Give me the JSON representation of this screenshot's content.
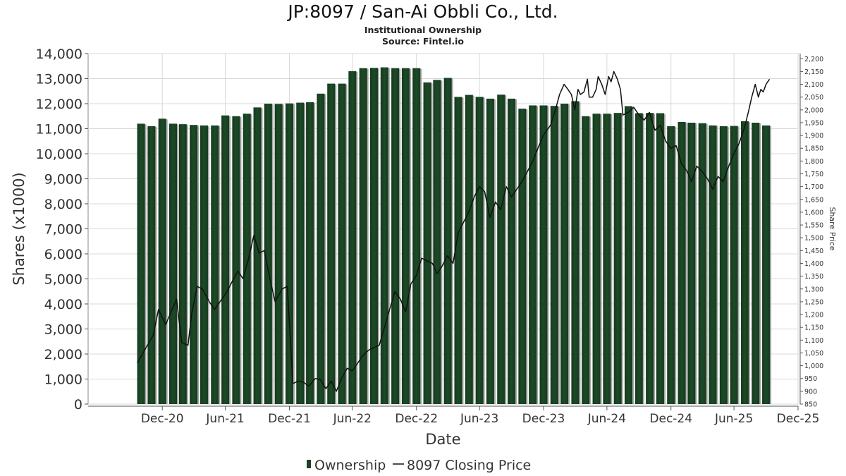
{
  "title": "JP:8097 / San-Ai Obbli Co., Ltd.",
  "subtitle": "Institutional Ownership",
  "source": "Source: Fintel.io",
  "chart_data": {
    "type": "bar",
    "title": "JP:8097 / San-Ai Obbli Co., Ltd.",
    "xlabel": "Date",
    "ylabel": "Shares (x1000)",
    "y2label": "Share Price",
    "ylim": [
      0,
      14000
    ],
    "y2lim": [
      850,
      2220
    ],
    "yticks": [
      "0",
      "1,000",
      "2,000",
      "3,000",
      "4,000",
      "5,000",
      "6,000",
      "7,000",
      "8,000",
      "9,000",
      "10,000",
      "11,000",
      "12,000",
      "13,000",
      "14,000"
    ],
    "y2ticks": [
      "850",
      "900",
      "950",
      "1,000",
      "1,050",
      "1,100",
      "1,150",
      "1,200",
      "1,250",
      "1,300",
      "1,350",
      "1,400",
      "1,450",
      "1,500",
      "1,550",
      "1,600",
      "1,650",
      "1,700",
      "1,750",
      "1,800",
      "1,850",
      "1,900",
      "1,950",
      "2,000",
      "2,050",
      "2,100",
      "2,150",
      "2,200"
    ],
    "xlim": [
      "2020-06-01",
      "2025-12-31"
    ],
    "xticks": [
      {
        "label": "Dec-20",
        "date": "2020-12-31"
      },
      {
        "label": "Jun-21",
        "date": "2021-06-30"
      },
      {
        "label": "Dec-21",
        "date": "2021-12-31"
      },
      {
        "label": "Jun-22",
        "date": "2022-06-30"
      },
      {
        "label": "Dec-22",
        "date": "2022-12-31"
      },
      {
        "label": "Jun-23",
        "date": "2023-06-30"
      },
      {
        "label": "Dec-23",
        "date": "2023-12-31"
      },
      {
        "label": "Jun-24",
        "date": "2024-06-30"
      },
      {
        "label": "Dec-24",
        "date": "2024-12-31"
      },
      {
        "label": "Jun-25",
        "date": "2025-06-30"
      },
      {
        "label": "Dec-25",
        "date": "2025-12-31"
      }
    ],
    "legend_position": "bottom",
    "grid": true,
    "series": [
      {
        "name": "Ownership",
        "type": "bar",
        "color": "#1a4223",
        "x": [
          "2020-10-31",
          "2020-11-30",
          "2020-12-31",
          "2021-01-31",
          "2021-02-28",
          "2021-03-31",
          "2021-04-30",
          "2021-05-31",
          "2021-06-30",
          "2021-07-31",
          "2021-08-31",
          "2021-09-30",
          "2021-10-31",
          "2021-11-30",
          "2021-12-31",
          "2022-01-31",
          "2022-02-28",
          "2022-03-31",
          "2022-04-30",
          "2022-05-31",
          "2022-06-30",
          "2022-07-31",
          "2022-08-31",
          "2022-09-30",
          "2022-10-31",
          "2022-11-30",
          "2022-12-31",
          "2023-01-31",
          "2023-02-28",
          "2023-03-31",
          "2023-04-30",
          "2023-05-31",
          "2023-06-30",
          "2023-07-31",
          "2023-08-31",
          "2023-09-30",
          "2023-10-31",
          "2023-11-30",
          "2023-12-31",
          "2024-01-31",
          "2024-02-29",
          "2024-03-31",
          "2024-04-30",
          "2024-05-31",
          "2024-06-30",
          "2024-07-31",
          "2024-08-31",
          "2024-09-30",
          "2024-10-31",
          "2024-11-30",
          "2024-12-31",
          "2025-01-31",
          "2025-02-28",
          "2025-03-31",
          "2025-04-30",
          "2025-05-31",
          "2025-06-30",
          "2025-07-31",
          "2025-08-31",
          "2025-09-30"
        ],
        "values": [
          11200,
          11100,
          11400,
          11200,
          11180,
          11150,
          11130,
          11130,
          11530,
          11500,
          11600,
          11850,
          12000,
          11990,
          12010,
          12040,
          12060,
          12400,
          12800,
          12800,
          13300,
          13420,
          13430,
          13450,
          13420,
          13420,
          13420,
          12850,
          12950,
          13030,
          12270,
          12350,
          12270,
          12200,
          12360,
          12200,
          11800,
          11930,
          11930,
          11910,
          12000,
          12100,
          11500,
          11600,
          11600,
          11630,
          11900,
          11620,
          11630,
          11620,
          11100,
          11270,
          11240,
          11220,
          11130,
          11100,
          11110,
          11300,
          11240,
          11130
        ]
      },
      {
        "name": "8097 Closing Price",
        "type": "line",
        "color": "#111111",
        "points": [
          [
            "2020-10-20",
            1010
          ],
          [
            "2020-11-10",
            1060
          ],
          [
            "2020-12-05",
            1120
          ],
          [
            "2020-12-20",
            1220
          ],
          [
            "2021-01-10",
            1160
          ],
          [
            "2021-01-25",
            1210
          ],
          [
            "2021-02-10",
            1260
          ],
          [
            "2021-02-25",
            1090
          ],
          [
            "2021-03-15",
            1080
          ],
          [
            "2021-03-25",
            1200
          ],
          [
            "2021-04-10",
            1310
          ],
          [
            "2021-04-25",
            1300
          ],
          [
            "2021-05-15",
            1250
          ],
          [
            "2021-05-30",
            1220
          ],
          [
            "2021-06-20",
            1260
          ],
          [
            "2021-07-05",
            1290
          ],
          [
            "2021-07-20",
            1330
          ],
          [
            "2021-08-05",
            1370
          ],
          [
            "2021-08-20",
            1340
          ],
          [
            "2021-09-05",
            1420
          ],
          [
            "2021-09-20",
            1510
          ],
          [
            "2021-10-05",
            1440
          ],
          [
            "2021-10-20",
            1450
          ],
          [
            "2021-11-05",
            1340
          ],
          [
            "2021-11-20",
            1250
          ],
          [
            "2021-12-10",
            1300
          ],
          [
            "2021-12-25",
            1310
          ],
          [
            "2022-01-10",
            930
          ],
          [
            "2022-01-25",
            940
          ],
          [
            "2022-02-10",
            935
          ],
          [
            "2022-02-25",
            920
          ],
          [
            "2022-03-15",
            950
          ],
          [
            "2022-03-30",
            945
          ],
          [
            "2022-04-15",
            910
          ],
          [
            "2022-04-30",
            940
          ],
          [
            "2022-05-15",
            900
          ],
          [
            "2022-05-30",
            950
          ],
          [
            "2022-06-15",
            990
          ],
          [
            "2022-06-30",
            980
          ],
          [
            "2022-07-15",
            1010
          ],
          [
            "2022-07-30",
            1040
          ],
          [
            "2022-08-15",
            1060
          ],
          [
            "2022-08-30",
            1070
          ],
          [
            "2022-09-15",
            1080
          ],
          [
            "2022-09-30",
            1150
          ],
          [
            "2022-10-15",
            1220
          ],
          [
            "2022-10-30",
            1290
          ],
          [
            "2022-11-15",
            1260
          ],
          [
            "2022-11-30",
            1210
          ],
          [
            "2022-12-15",
            1320
          ],
          [
            "2022-12-30",
            1350
          ],
          [
            "2023-01-15",
            1420
          ],
          [
            "2023-01-30",
            1410
          ],
          [
            "2023-02-15",
            1400
          ],
          [
            "2023-02-28",
            1360
          ],
          [
            "2023-03-15",
            1390
          ],
          [
            "2023-03-30",
            1430
          ],
          [
            "2023-04-15",
            1400
          ],
          [
            "2023-04-30",
            1520
          ],
          [
            "2023-05-15",
            1560
          ],
          [
            "2023-05-30",
            1600
          ],
          [
            "2023-06-15",
            1660
          ],
          [
            "2023-06-30",
            1700
          ],
          [
            "2023-07-15",
            1680
          ],
          [
            "2023-07-30",
            1580
          ],
          [
            "2023-08-15",
            1640
          ],
          [
            "2023-08-30",
            1610
          ],
          [
            "2023-09-15",
            1700
          ],
          [
            "2023-09-30",
            1660
          ],
          [
            "2023-10-15",
            1690
          ],
          [
            "2023-10-30",
            1720
          ],
          [
            "2023-11-15",
            1760
          ],
          [
            "2023-11-30",
            1800
          ],
          [
            "2023-12-15",
            1850
          ],
          [
            "2023-12-30",
            1900
          ],
          [
            "2024-01-20",
            1940
          ],
          [
            "2024-02-05",
            2010
          ],
          [
            "2024-02-15",
            2060
          ],
          [
            "2024-02-28",
            2100
          ],
          [
            "2024-03-10",
            2080
          ],
          [
            "2024-03-20",
            2060
          ],
          [
            "2024-03-30",
            2000
          ],
          [
            "2024-04-08",
            2080
          ],
          [
            "2024-04-15",
            2060
          ],
          [
            "2024-04-25",
            2070
          ],
          [
            "2024-05-05",
            2120
          ],
          [
            "2024-05-10",
            2050
          ],
          [
            "2024-05-20",
            2050
          ],
          [
            "2024-05-30",
            2080
          ],
          [
            "2024-06-05",
            2130
          ],
          [
            "2024-06-15",
            2100
          ],
          [
            "2024-06-25",
            2060
          ],
          [
            "2024-07-05",
            2130
          ],
          [
            "2024-07-12",
            2110
          ],
          [
            "2024-07-20",
            2150
          ],
          [
            "2024-07-30",
            2120
          ],
          [
            "2024-08-08",
            2080
          ],
          [
            "2024-08-15",
            1980
          ],
          [
            "2024-08-30",
            1990
          ],
          [
            "2024-09-15",
            2010
          ],
          [
            "2024-09-30",
            1980
          ],
          [
            "2024-10-15",
            1960
          ],
          [
            "2024-10-30",
            1990
          ],
          [
            "2024-11-15",
            1920
          ],
          [
            "2024-11-30",
            1940
          ],
          [
            "2024-12-15",
            1880
          ],
          [
            "2024-12-30",
            1850
          ],
          [
            "2025-01-15",
            1860
          ],
          [
            "2025-01-30",
            1790
          ],
          [
            "2025-02-15",
            1760
          ],
          [
            "2025-02-28",
            1720
          ],
          [
            "2025-03-15",
            1780
          ],
          [
            "2025-03-30",
            1760
          ],
          [
            "2025-04-15",
            1730
          ],
          [
            "2025-04-30",
            1690
          ],
          [
            "2025-05-15",
            1740
          ],
          [
            "2025-05-30",
            1720
          ],
          [
            "2025-06-15",
            1780
          ],
          [
            "2025-06-30",
            1830
          ],
          [
            "2025-07-15",
            1870
          ],
          [
            "2025-07-30",
            1930
          ],
          [
            "2025-08-10",
            1990
          ],
          [
            "2025-08-20",
            2050
          ],
          [
            "2025-08-30",
            2100
          ],
          [
            "2025-09-08",
            2050
          ],
          [
            "2025-09-15",
            2080
          ],
          [
            "2025-09-22",
            2070
          ],
          [
            "2025-09-30",
            2100
          ],
          [
            "2025-10-10",
            2120
          ]
        ]
      }
    ]
  }
}
